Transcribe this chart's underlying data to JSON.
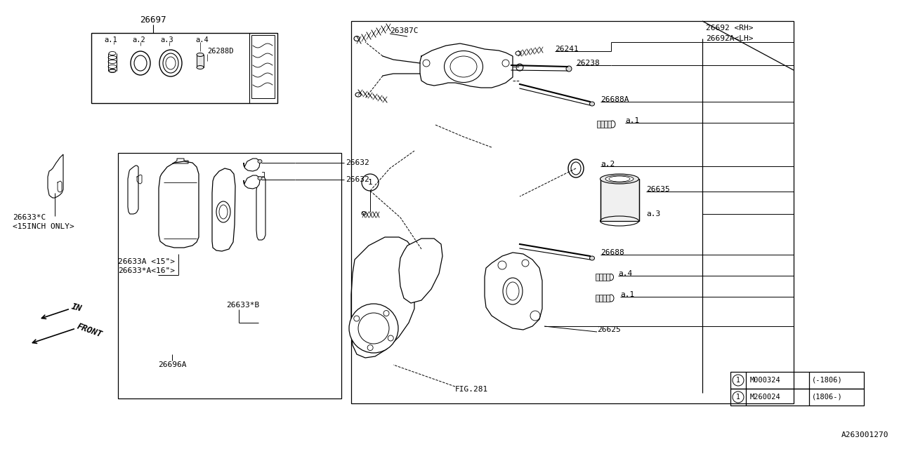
{
  "bg_color": "#ffffff",
  "line_color": "#000000",
  "text_color": "#000000",
  "fig_width": 12.8,
  "fig_height": 6.4,
  "watermark": "A263001270",
  "label_26697": "26697",
  "label_26288D": "26288D",
  "label_26633C": "26633*C",
  "label_15inch": "<15INCH ONLY>",
  "label_26633A": "26633A <15\">",
  "label_26633Ax": "26633*A<16\">",
  "label_26632": "26632",
  "label_26633B": "26633*B",
  "label_26696A": "26696A",
  "label_IN": "IN",
  "label_FRONT": "FRONT",
  "label_26692rh": "26692 <RH>",
  "label_26692lh": "26692A<LH>",
  "label_26387C": "26387C",
  "label_26241": "26241",
  "label_26238": "26238",
  "label_26688A": "26688A",
  "label_a1": "a.1",
  "label_a2": "a.2",
  "label_26635": "26635",
  "label_a3": "a.3",
  "label_26688": "26688",
  "label_a4": "a.4",
  "label_26625": "26625",
  "label_fig281": "FIG.281",
  "label_M000324": "M000324",
  "label_M260024": "M260024",
  "label_1806m": "(-1806)",
  "label_1806p": "(1806-)"
}
